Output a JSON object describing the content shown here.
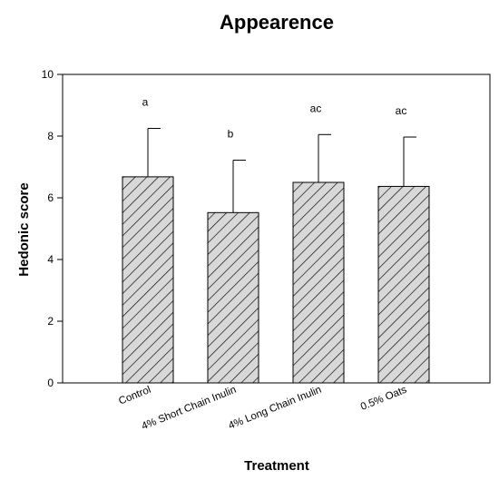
{
  "chart_data": {
    "type": "bar",
    "title": "Appearence",
    "xlabel": "Treatment",
    "ylabel": "Hedonic score",
    "categories": [
      "Control",
      "4% Short Chain Inulin",
      "4% Long Chain Inulin",
      "0.5% Oats"
    ],
    "values": [
      6.68,
      5.52,
      6.5,
      6.37
    ],
    "error_upper": [
      8.25,
      7.22,
      8.05,
      7.97
    ],
    "significance_labels": [
      "a",
      "b",
      "ac",
      "ac"
    ],
    "ylim": [
      0,
      10
    ],
    "yticks": [
      0,
      2,
      4,
      6,
      8,
      10
    ],
    "ytick_labels": [
      "0",
      "2",
      "4",
      "6",
      "8",
      "10"
    ],
    "bar_fill": "#d8d8d8",
    "bar_pattern": "diagonal-hatch",
    "grid": false,
    "legend": "none"
  }
}
